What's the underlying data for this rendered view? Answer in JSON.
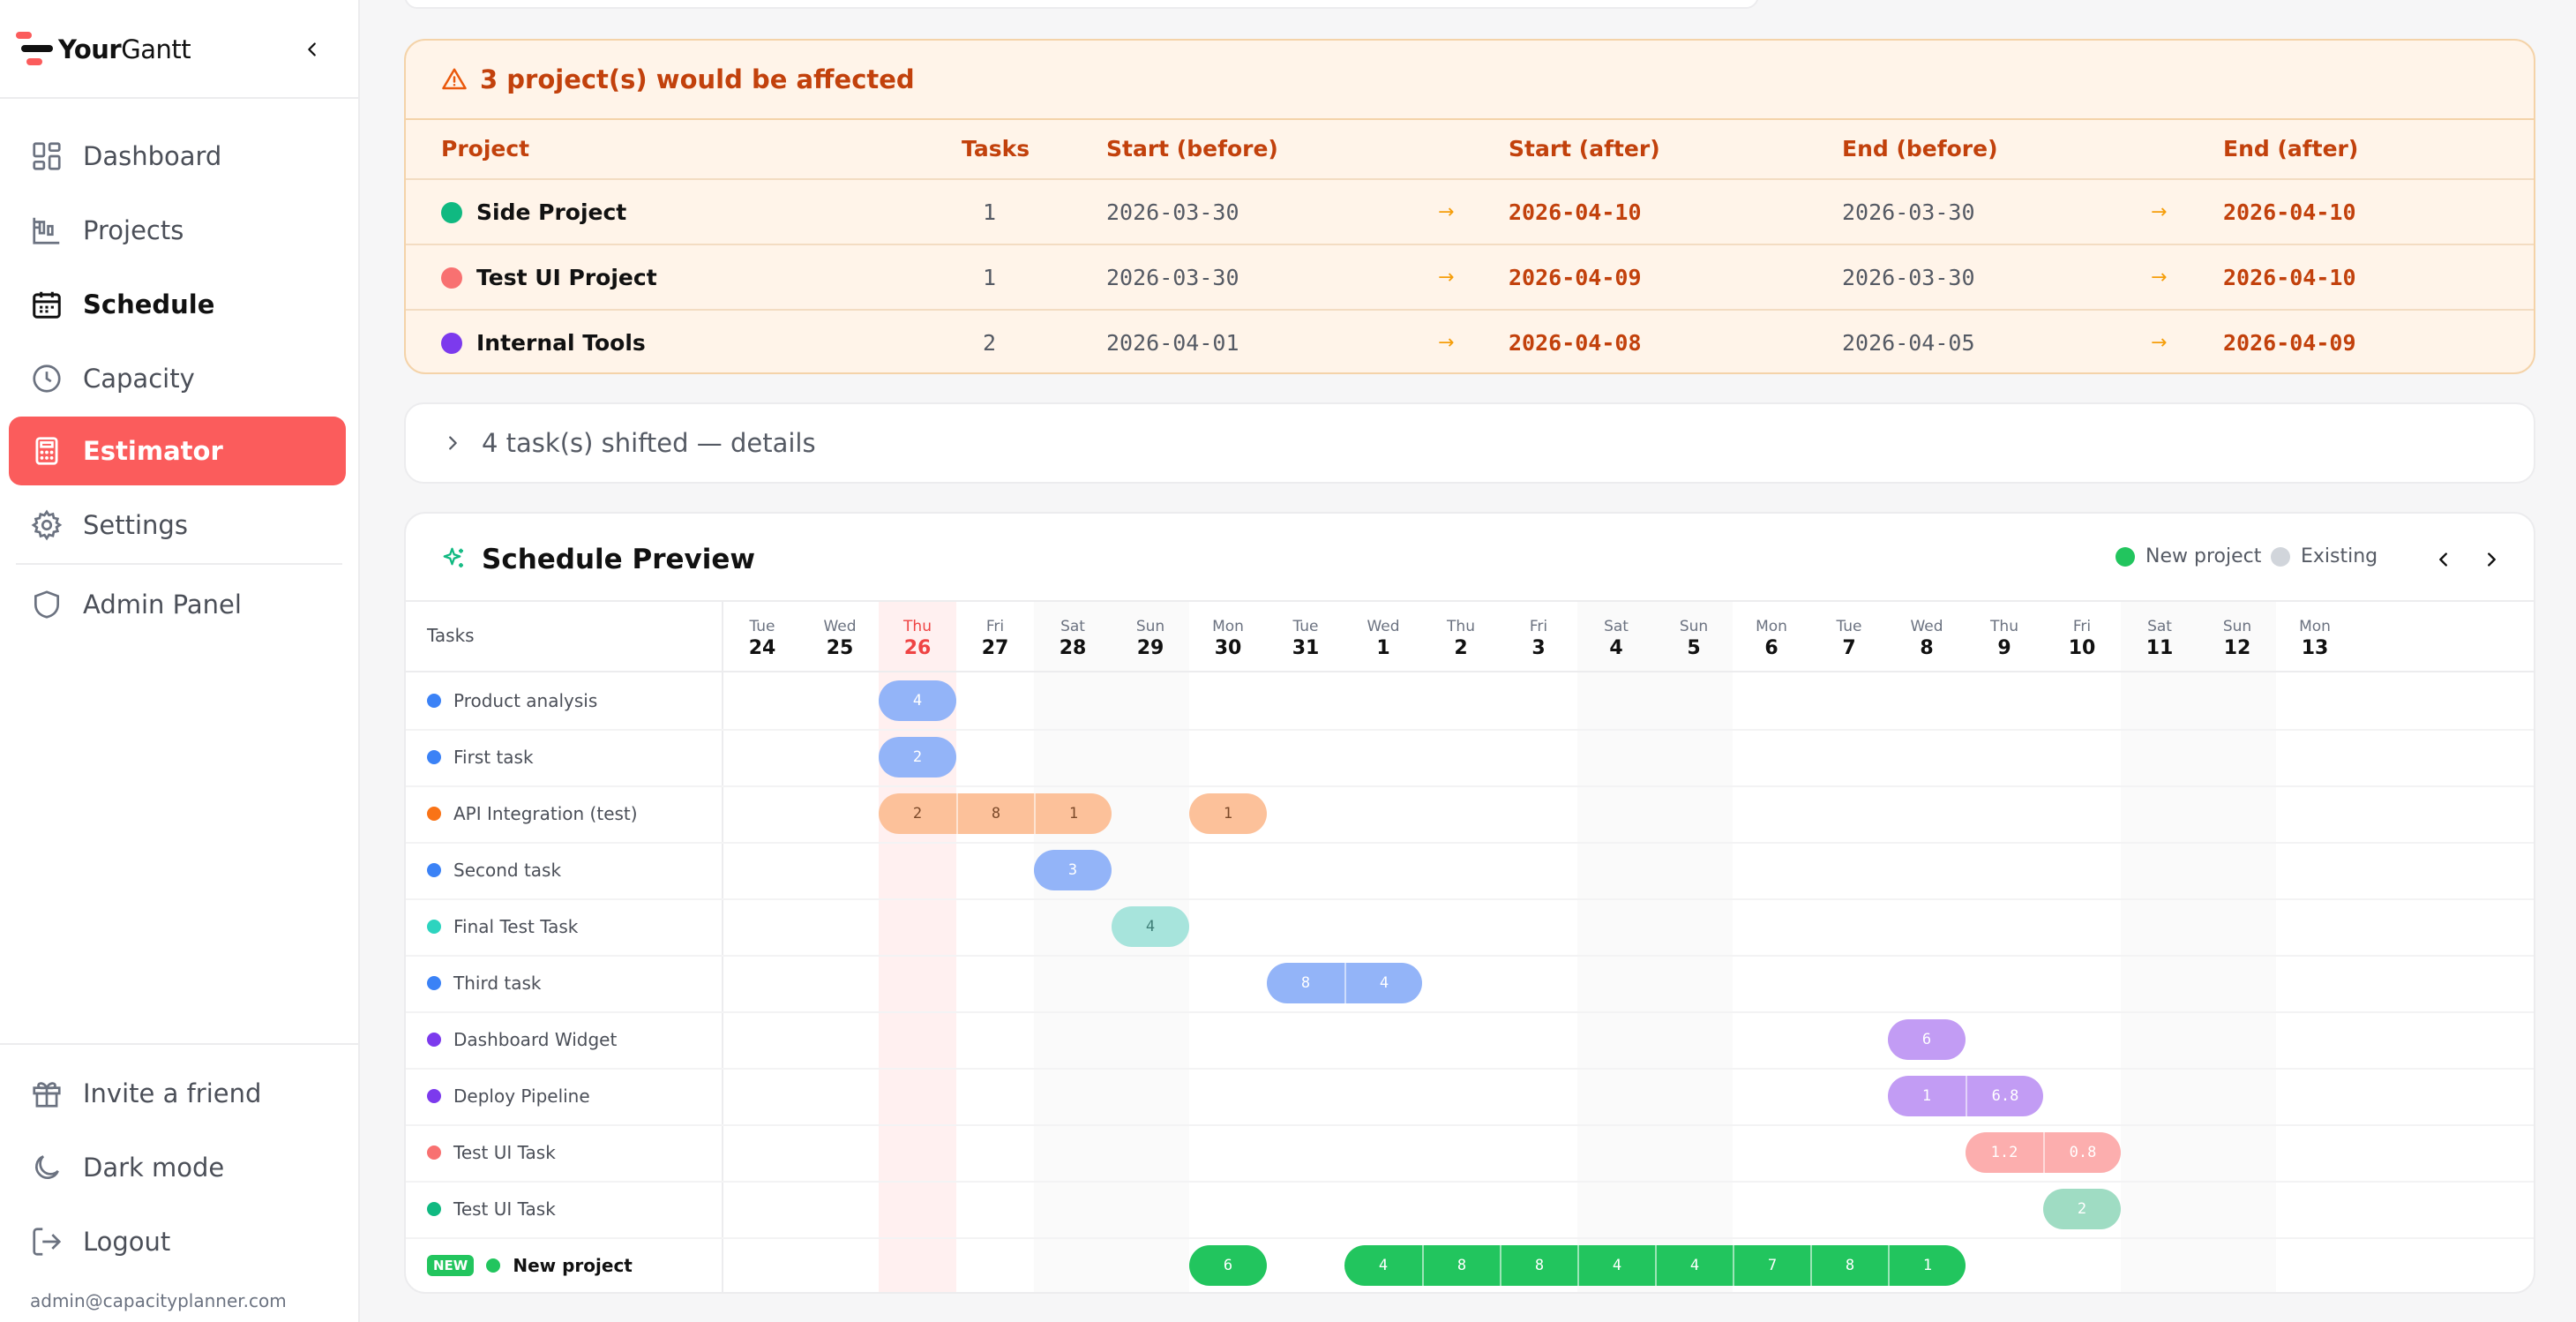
{
  "app": {
    "brand_prefix": "Your",
    "brand_suffix": "Gantt"
  },
  "sidebar": {
    "items": [
      {
        "label": "Dashboard",
        "icon": "dashboard-icon"
      },
      {
        "label": "Projects",
        "icon": "projects-icon"
      },
      {
        "label": "Schedule",
        "icon": "calendar-icon"
      },
      {
        "label": "Capacity",
        "icon": "clock-icon"
      },
      {
        "label": "Estimator",
        "icon": "calculator-icon"
      },
      {
        "label": "Settings",
        "icon": "gear-icon"
      },
      {
        "label": "Admin Panel",
        "icon": "shield-icon"
      }
    ],
    "active_item": "Estimator",
    "bottom_items": [
      {
        "label": "Invite a friend",
        "icon": "gift-icon"
      },
      {
        "label": "Dark mode",
        "icon": "moon-icon"
      },
      {
        "label": "Logout",
        "icon": "logout-icon"
      }
    ],
    "user_email": "admin@capacityplanner.com"
  },
  "affected": {
    "title": "3 project(s) would be affected",
    "headers": {
      "project": "Project",
      "tasks": "Tasks",
      "start_before": "Start (before)",
      "start_after": "Start (after)",
      "end_before": "End (before)",
      "end_after": "End (after)"
    },
    "rows": [
      {
        "name": "Side Project",
        "color": "#10b981",
        "tasks": "1",
        "start_before": "2026-03-30",
        "start_after": "2026-04-10",
        "end_before": "2026-03-30",
        "end_after": "2026-04-10"
      },
      {
        "name": "Test UI Project",
        "color": "#f87171",
        "tasks": "1",
        "start_before": "2026-03-30",
        "start_after": "2026-04-09",
        "end_before": "2026-03-30",
        "end_after": "2026-04-10"
      },
      {
        "name": "Internal Tools",
        "color": "#7c3aed",
        "tasks": "2",
        "start_before": "2026-04-01",
        "start_after": "2026-04-08",
        "end_before": "2026-04-05",
        "end_after": "2026-04-09"
      }
    ]
  },
  "shifted": {
    "label": "4 task(s) shifted — details"
  },
  "preview": {
    "title": "Schedule Preview",
    "legend_new": "New project",
    "legend_existing": "Existing",
    "legend_new_color": "#22c55e",
    "legend_existing_color": "#d1d5db",
    "tasks_header": "Tasks",
    "today_index": 2,
    "days": [
      {
        "name": "Tue",
        "num": "24"
      },
      {
        "name": "Wed",
        "num": "25"
      },
      {
        "name": "Thu",
        "num": "26"
      },
      {
        "name": "Fri",
        "num": "27"
      },
      {
        "name": "Sat",
        "num": "28"
      },
      {
        "name": "Sun",
        "num": "29"
      },
      {
        "name": "Mon",
        "num": "30"
      },
      {
        "name": "Tue",
        "num": "31"
      },
      {
        "name": "Wed",
        "num": "1"
      },
      {
        "name": "Thu",
        "num": "2"
      },
      {
        "name": "Fri",
        "num": "3"
      },
      {
        "name": "Sat",
        "num": "4"
      },
      {
        "name": "Sun",
        "num": "5"
      },
      {
        "name": "Mon",
        "num": "6"
      },
      {
        "name": "Tue",
        "num": "7"
      },
      {
        "name": "Wed",
        "num": "8"
      },
      {
        "name": "Thu",
        "num": "9"
      },
      {
        "name": "Fri",
        "num": "10"
      },
      {
        "name": "Sat",
        "num": "11"
      },
      {
        "name": "Sun",
        "num": "12"
      },
      {
        "name": "Mon",
        "num": "13"
      }
    ],
    "new_badge": "NEW",
    "tasks": [
      {
        "name": "Product analysis",
        "dot": "#3b82f6",
        "bar_color": "#93b4f8",
        "text_color": "#fff",
        "blocks": [
          {
            "start": 2,
            "values": [
              "4"
            ]
          }
        ]
      },
      {
        "name": "First task",
        "dot": "#3b82f6",
        "bar_color": "#93b4f8",
        "text_color": "#fff",
        "blocks": [
          {
            "start": 2,
            "values": [
              "2"
            ]
          }
        ]
      },
      {
        "name": "API Integration (test)",
        "dot": "#f97316",
        "bar_color": "#fcc19a",
        "text_color": "#7c4a2a",
        "blocks": [
          {
            "start": 2,
            "values": [
              "2",
              "8",
              "1"
            ]
          },
          {
            "start": 6,
            "values": [
              "1"
            ]
          }
        ]
      },
      {
        "name": "Second task",
        "dot": "#3b82f6",
        "bar_color": "#93b4f8",
        "text_color": "#fff",
        "blocks": [
          {
            "start": 4,
            "values": [
              "3"
            ]
          }
        ]
      },
      {
        "name": "Final Test Task",
        "dot": "#2dd4bf",
        "bar_color": "#a7e4dc",
        "text_color": "#3f7f78",
        "blocks": [
          {
            "start": 5,
            "values": [
              "4"
            ]
          }
        ]
      },
      {
        "name": "Third task",
        "dot": "#3b82f6",
        "bar_color": "#93b4f8",
        "text_color": "#fff",
        "blocks": [
          {
            "start": 7,
            "values": [
              "8",
              "4"
            ]
          }
        ]
      },
      {
        "name": "Dashboard Widget",
        "dot": "#7c3aed",
        "bar_color": "#c29cf4",
        "text_color": "#fff",
        "blocks": [
          {
            "start": 15,
            "values": [
              "6"
            ]
          }
        ]
      },
      {
        "name": "Deploy Pipeline",
        "dot": "#7c3aed",
        "bar_color": "#c29cf4",
        "text_color": "#fff",
        "blocks": [
          {
            "start": 15,
            "values": [
              "1",
              "6.8"
            ]
          }
        ]
      },
      {
        "name": "Test UI Task",
        "dot": "#f87171",
        "bar_color": "#fcaeae",
        "text_color": "#fff",
        "blocks": [
          {
            "start": 16,
            "values": [
              "1.2",
              "0.8"
            ]
          }
        ]
      },
      {
        "name": "Test UI Task",
        "dot": "#10b981",
        "bar_color": "#9fdcc3",
        "text_color": "#fff",
        "blocks": [
          {
            "start": 17,
            "values": [
              "2"
            ]
          }
        ]
      },
      {
        "name": "New project",
        "dot": "#22c55e",
        "is_new": true,
        "bar_color": "#22c55e",
        "text_color": "#fff",
        "blocks": [
          {
            "start": 6,
            "values": [
              "6"
            ]
          },
          {
            "start": 8,
            "values": [
              "4",
              "8",
              "8",
              "4",
              "4",
              "7",
              "8",
              "1"
            ]
          }
        ]
      }
    ]
  }
}
